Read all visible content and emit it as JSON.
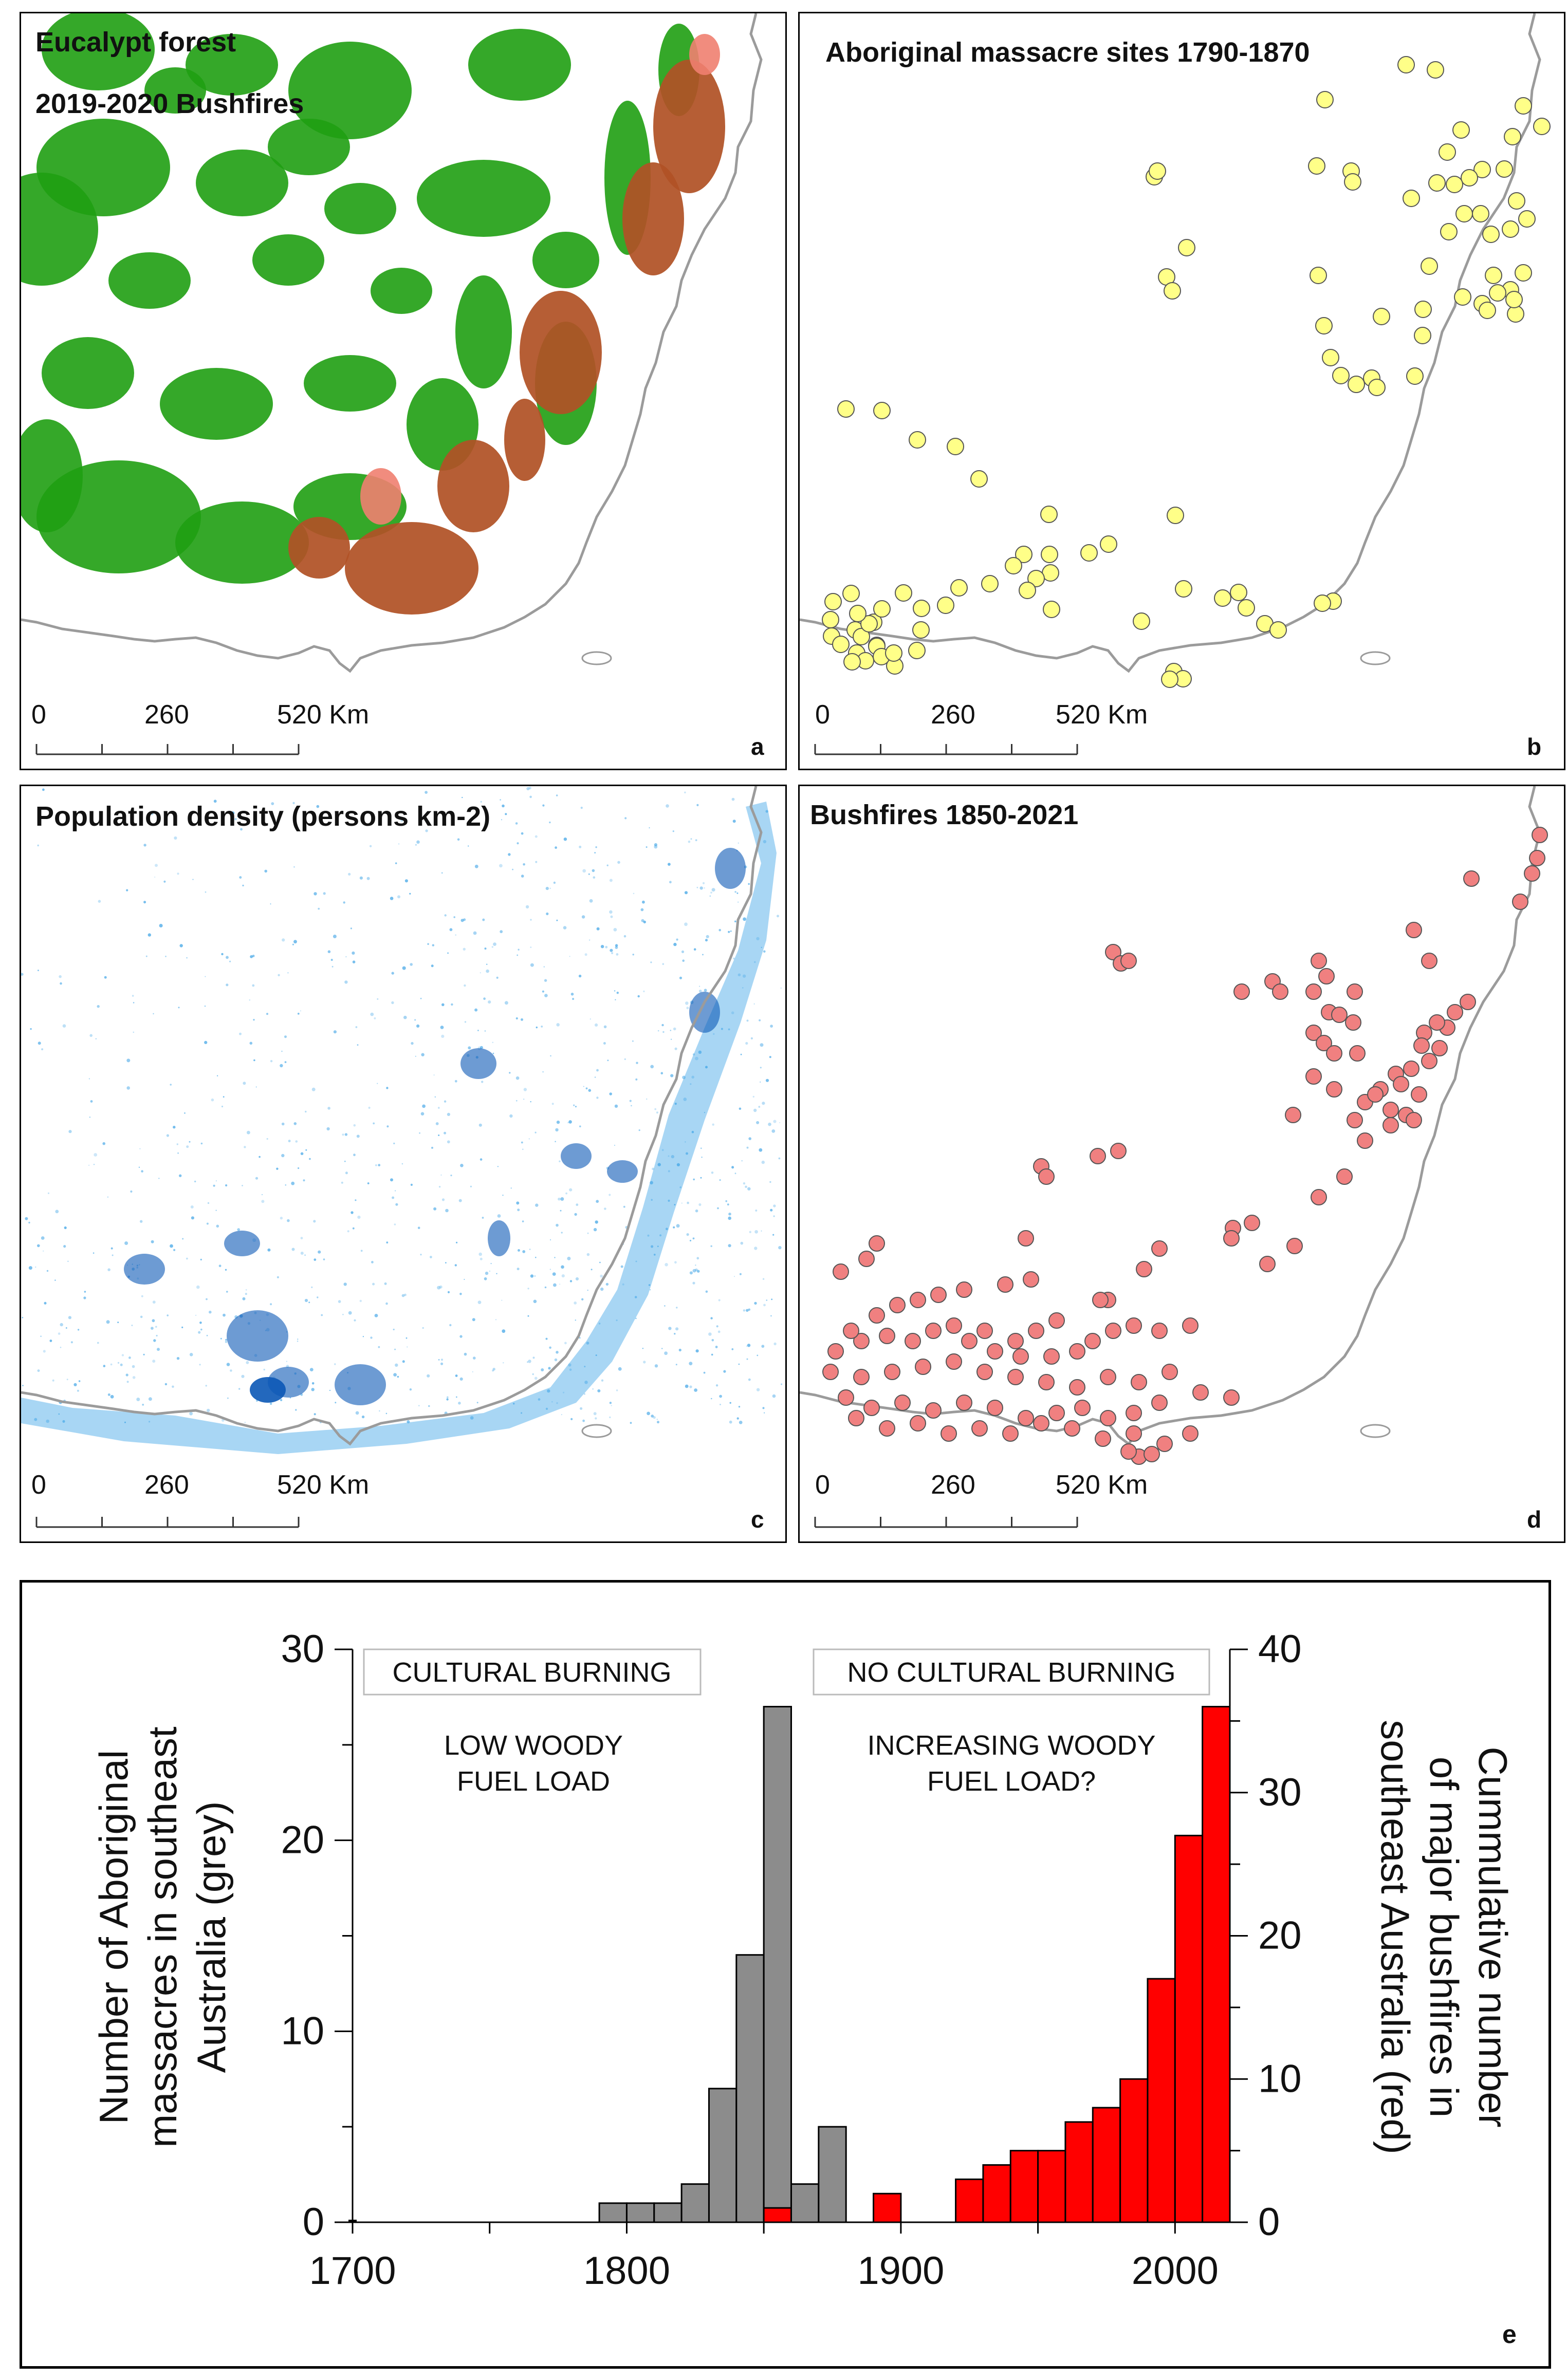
{
  "panels": {
    "a": {
      "title1": "Eucalypt forest",
      "title2": "2019-2020 Bushfires",
      "letter": "a"
    },
    "b": {
      "title": "Aboriginal massacre sites 1790-1870",
      "letter": "b"
    },
    "c": {
      "title": "Population density (persons km-2)",
      "letter": "c"
    },
    "d": {
      "title": "Bushfires 1850-2021",
      "letter": "d"
    },
    "e": {
      "letter": "e"
    }
  },
  "scalebar": {
    "t0": "0",
    "t1": "260",
    "t2": "520 Km"
  },
  "colors": {
    "forest": "#1f9e12",
    "fire": "#b05226",
    "fire_light": "#f08070",
    "massacre": "#ffff88",
    "bushfire": "#f08080",
    "population": "#3fa4e6",
    "population_dark": "#0b58b6",
    "coast": "#9b9b9b",
    "grey_bar": "#8c8c8c",
    "red_bar": "#ff0000"
  },
  "chart_data": {
    "type": "bar",
    "xlim": [
      1700,
      2020
    ],
    "x_ticks": [
      1700,
      1800,
      1900,
      2000
    ],
    "bin_width": 10,
    "left_axis": {
      "label_line1": "Number of Aboriginal",
      "label_line2": "massacres in southeast",
      "label_line3": "Australia (grey)",
      "ylim": [
        0,
        30
      ],
      "ticks": [
        0,
        10,
        20,
        30
      ]
    },
    "right_axis": {
      "label_line1": "Cummulative number",
      "label_line2": "of major bushfires in",
      "label_line3": "southeast Australia (red)",
      "ylim": [
        0,
        40
      ],
      "ticks": [
        0,
        10,
        20,
        30,
        40
      ]
    },
    "annotations": {
      "cultural": "CULTURAL BURNING",
      "no_cultural": "NO CULTURAL BURNING",
      "low_line1": "LOW WOODY",
      "low_line2": "FUEL LOAD",
      "inc_line1": "INCREASING WOODY",
      "inc_line2": "FUEL LOAD?"
    },
    "series": [
      {
        "name": "Aboriginal massacres (grey)",
        "axis": "left",
        "bin_starts": [
          1790,
          1800,
          1810,
          1820,
          1830,
          1840,
          1850,
          1860,
          1870
        ],
        "values": [
          1,
          1,
          1,
          2,
          7,
          14,
          27,
          2,
          5
        ]
      },
      {
        "name": "Cumulative major bushfires (red)",
        "axis": "right",
        "bin_starts": [
          1850,
          1890,
          1920,
          1930,
          1940,
          1950,
          1960,
          1970,
          1980,
          1990,
          2000,
          2010
        ],
        "values": [
          1,
          2,
          3,
          4,
          5,
          5,
          7,
          8,
          10,
          17,
          27,
          36
        ]
      }
    ]
  }
}
